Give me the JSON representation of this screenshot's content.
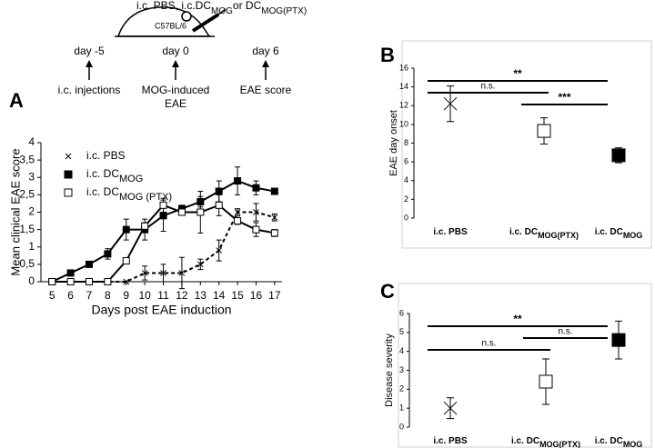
{
  "schematic": {
    "treatment": {
      "text": "i.c. PBS, i.c.DC",
      "sub1": "MOG",
      "mid": "or DC",
      "sub2": "MOG(PTX)"
    },
    "strain": "C57BL/6",
    "timeline": [
      {
        "day": "day -5",
        "event": [
          "i.c. injections"
        ]
      },
      {
        "day": "day 0",
        "event": [
          "MOG-induced",
          "EAE"
        ]
      },
      {
        "day": "day 6",
        "event": [
          "EAE score"
        ]
      }
    ]
  },
  "chart_data": [
    {
      "type": "line",
      "panel": "A",
      "x_label": "Days post EAE induction",
      "y_label": "Mean clinical EAE score",
      "x": [
        5,
        6,
        7,
        8,
        9,
        10,
        11,
        12,
        13,
        14,
        15,
        16,
        17
      ],
      "xlim": [
        4.4,
        17.4
      ],
      "xticks": [
        5,
        6,
        7,
        8,
        9,
        10,
        11,
        12,
        13,
        14,
        15,
        16,
        17
      ],
      "ylim": [
        0,
        4
      ],
      "yticks": [
        0,
        {
          "value": 0.5,
          "label": "0,5"
        },
        1,
        {
          "value": 1.5,
          "label": "1,5"
        },
        2,
        {
          "value": 2.5,
          "label": "2,5"
        },
        3,
        {
          "value": 3.5,
          "label": "3,5"
        },
        4
      ],
      "legend": "upper left",
      "series": [
        {
          "name": "i.c. PBS",
          "color": "#000000",
          "marker": "x",
          "line": "dashed",
          "values": [
            0,
            0,
            0,
            0,
            0,
            0.25,
            0.25,
            0.25,
            0.5,
            0.9,
            2.0,
            2.0,
            1.85
          ],
          "errors": [
            null,
            null,
            null,
            null,
            null,
            0.2,
            0.25,
            0.45,
            0.15,
            0.3,
            0.1,
            0.25,
            0.1
          ]
        },
        {
          "name": "i.c. DC",
          "name_sub": "MOG",
          "color": "#000000",
          "marker": "square-filled",
          "line": "solid",
          "values": [
            0,
            0.25,
            0.5,
            0.8,
            1.5,
            1.5,
            1.9,
            2.1,
            2.3,
            2.6,
            2.9,
            2.7,
            2.6
          ],
          "errors": [
            null,
            0.08,
            0.08,
            0.15,
            0.3,
            0.3,
            0.45,
            0.1,
            0.15,
            0.3,
            0.4,
            0.2,
            0.08
          ]
        },
        {
          "name": "i.c. DC",
          "name_sub": "MOG (PTX)",
          "color": "#000000",
          "marker": "square-open",
          "line": "solid",
          "values": [
            0,
            0,
            0,
            0,
            0.6,
            1.6,
            2.2,
            2.0,
            2.0,
            2.2,
            1.75,
            1.5,
            1.4
          ],
          "errors": [
            null,
            null,
            null,
            null,
            0.05,
            0.1,
            0.2,
            0.05,
            0.6,
            0.3,
            0.1,
            0.2,
            0.1
          ]
        }
      ]
    },
    {
      "type": "dot",
      "panel": "B",
      "y_label": "EAE day onset",
      "categories": [
        "i.c. PBS",
        "i.c. DC",
        "i.c. DC"
      ],
      "category_subs": [
        null,
        "MOG(PTX)",
        "MOG"
      ],
      "values": [
        12.2,
        9.3,
        6.7
      ],
      "errors": [
        1.9,
        1.4,
        0.8
      ],
      "markers": [
        "x",
        "square-open",
        "square-filled"
      ],
      "color": "#000000",
      "ylim": [
        0,
        16
      ],
      "yticks": [
        0,
        2,
        4,
        6,
        8,
        10,
        12,
        14,
        16
      ],
      "comparisons": [
        {
          "label": "**",
          "groups": [
            0,
            2
          ]
        },
        {
          "label": "n.s.",
          "groups": [
            0,
            1
          ]
        },
        {
          "label": "***",
          "groups": [
            1,
            2
          ]
        }
      ]
    },
    {
      "type": "dot",
      "panel": "C",
      "y_label": "Disease severity",
      "categories": [
        "i.c. PBS",
        "i.c. DC",
        "i.c. DC"
      ],
      "category_subs": [
        null,
        "MOG(PTX)",
        "MOG"
      ],
      "values": [
        1.0,
        2.4,
        4.6
      ],
      "errors": [
        0.55,
        1.2,
        1.0
      ],
      "markers": [
        "x",
        "square-open",
        "square-filled"
      ],
      "color": "#000000",
      "ylim": [
        0,
        6
      ],
      "yticks": [
        0,
        1,
        2,
        3,
        4,
        5,
        6
      ],
      "comparisons": [
        {
          "label": "**",
          "groups": [
            0,
            2
          ]
        },
        {
          "label": "n.s.",
          "groups": [
            1,
            2
          ]
        },
        {
          "label": "n.s.",
          "groups": [
            0,
            1
          ]
        }
      ]
    }
  ]
}
